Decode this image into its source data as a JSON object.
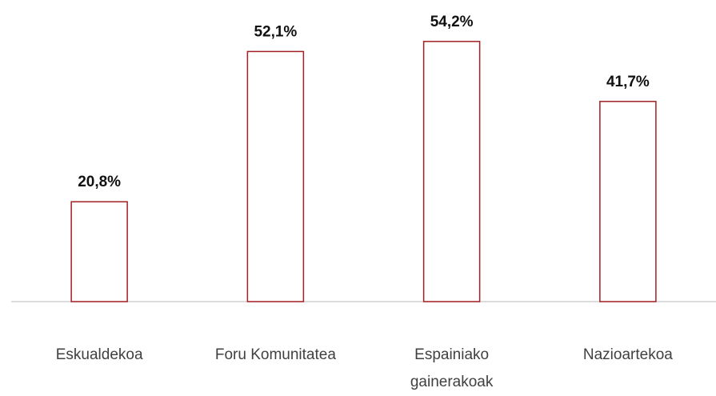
{
  "chart_data": {
    "type": "bar",
    "categories": [
      "Eskualdekoa",
      "Foru Komunitatea",
      "Espainiako gainerakoak",
      "Nazioartekoa"
    ],
    "values": [
      20.8,
      52.1,
      54.2,
      41.7
    ],
    "value_labels": [
      "20,8%",
      "52,1%",
      "54,2%",
      "41,7%"
    ],
    "color": "#a31f24",
    "ylim": [
      0,
      60
    ]
  }
}
